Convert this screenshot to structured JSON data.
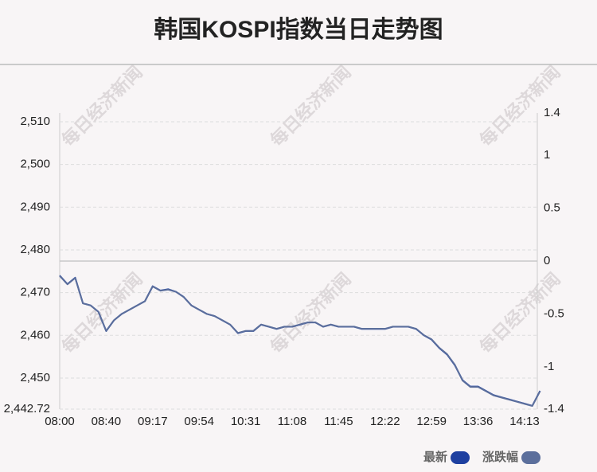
{
  "chart_data": {
    "type": "line",
    "title": "韩国KOSPI指数当日走势图",
    "watermark": "每日经济新闻",
    "categories": [
      "08:00",
      null,
      null,
      null,
      null,
      null,
      "08:40",
      null,
      null,
      null,
      null,
      null,
      "09:17",
      null,
      null,
      null,
      null,
      null,
      "09:54",
      null,
      null,
      null,
      null,
      null,
      "10:31",
      null,
      null,
      null,
      null,
      null,
      "11:08",
      null,
      null,
      null,
      null,
      null,
      "11:45",
      null,
      null,
      null,
      null,
      null,
      "12:22",
      null,
      null,
      null,
      null,
      null,
      "12:59",
      null,
      null,
      null,
      null,
      null,
      "13:36",
      null,
      null,
      null,
      null,
      null,
      "14:13",
      null,
      null
    ],
    "series": [
      {
        "name": "最新",
        "color": "#1e40a0",
        "values": [
          2474,
          2472,
          2473.5,
          2467.5,
          2467,
          2465.5,
          2461,
          2463.5,
          2465,
          2466,
          2467,
          2468,
          2471.5,
          2470.5,
          2470.8,
          2470.2,
          2469,
          2467,
          2466,
          2465,
          2464.5,
          2463.5,
          2462.5,
          2460.5,
          2461,
          2461,
          2462.5,
          2462,
          2461.5,
          2462,
          2462,
          2462.5,
          2463,
          2463,
          2462,
          2462.5,
          2462,
          2462,
          2462,
          2461.5,
          2461.5,
          2461.5,
          2461.5,
          2462,
          2462,
          2462,
          2461.5,
          2460,
          2459,
          2457,
          2455.5,
          2453,
          2449.5,
          2448,
          2448,
          2447,
          2446,
          2445.5,
          2445,
          2444.5,
          2444,
          2443.5,
          2447
        ]
      },
      {
        "name": "涨跌幅",
        "color": "#5c6f9c",
        "axis": "y2",
        "values": [
          -0.14,
          -0.22,
          -0.16,
          -0.4,
          -0.42,
          -0.48,
          -0.66,
          -0.56,
          -0.5,
          -0.46,
          -0.42,
          -0.38,
          -0.24,
          -0.28,
          -0.27,
          -0.29,
          -0.34,
          -0.42,
          -0.46,
          -0.5,
          -0.52,
          -0.56,
          -0.6,
          -0.68,
          -0.66,
          -0.66,
          -0.6,
          -0.62,
          -0.64,
          -0.62,
          -0.62,
          -0.6,
          -0.58,
          -0.58,
          -0.62,
          -0.6,
          -0.62,
          -0.62,
          -0.62,
          -0.64,
          -0.64,
          -0.64,
          -0.64,
          -0.62,
          -0.62,
          -0.62,
          -0.64,
          -0.7,
          -0.74,
          -0.82,
          -0.88,
          -0.98,
          -1.13,
          -1.19,
          -1.19,
          -1.23,
          -1.27,
          -1.29,
          -1.31,
          -1.33,
          -1.35,
          -1.37,
          -1.23
        ]
      }
    ],
    "ylim": [
      2442.72,
      2512.05
    ],
    "yticks": [
      {
        "value": 2442.72,
        "label": "2,442.72"
      },
      {
        "value": 2450,
        "label": "2,450"
      },
      {
        "value": 2460,
        "label": "2,460"
      },
      {
        "value": 2470,
        "label": "2,470"
      },
      {
        "value": 2480,
        "label": "2,480"
      },
      {
        "value": 2490,
        "label": "2,490"
      },
      {
        "value": 2500,
        "label": "2,500"
      },
      {
        "value": 2510,
        "label": "2,510"
      }
    ],
    "y2lim": [
      -1.4,
      1.4
    ],
    "y2ticks": [
      -1.4,
      -1,
      -0.5,
      0,
      0.5,
      1,
      1.4
    ],
    "grid": true
  }
}
